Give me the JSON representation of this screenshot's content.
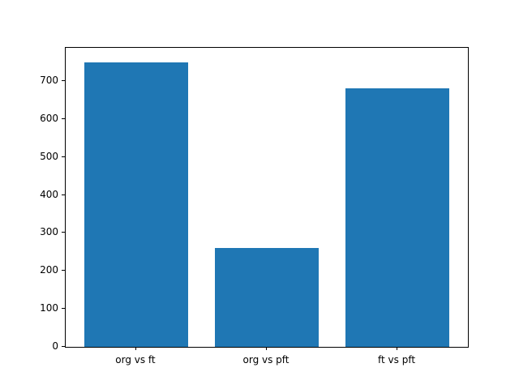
{
  "chart_data": {
    "type": "bar",
    "title": "",
    "xlabel": "",
    "ylabel": "",
    "categories": [
      "org vs ft",
      "org vs pft",
      "ft vs pft"
    ],
    "values": [
      750,
      260,
      680
    ],
    "bar_color": "#1f77b4",
    "bar_width": 0.8,
    "xlim": [
      -0.54,
      2.54
    ],
    "ylim": [
      0,
      787.5
    ],
    "yticks": [
      0,
      100,
      200,
      300,
      400,
      500,
      600,
      700
    ],
    "grid": false,
    "legend": null,
    "axes_color": "#000000",
    "background_color": "#ffffff"
  }
}
